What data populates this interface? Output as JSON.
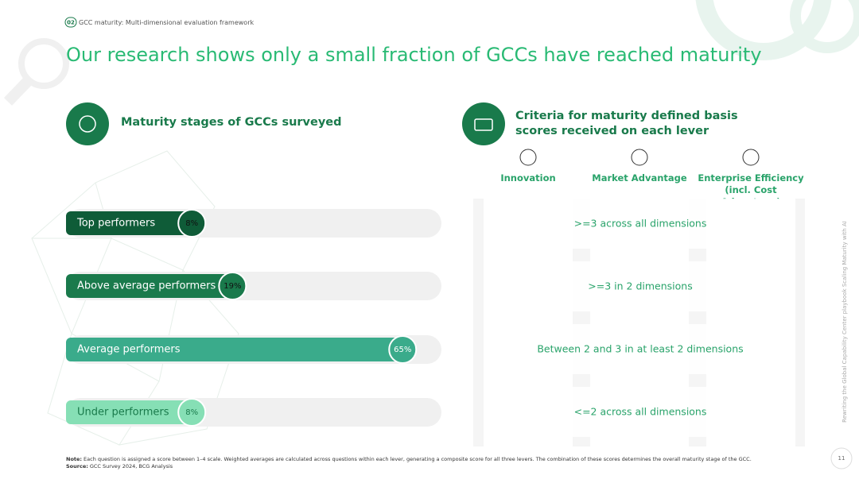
{
  "header": {
    "number": "02",
    "section": "GCC maturity: Multi-dimensional evaluation framework"
  },
  "title": "Our research shows only a small fraction of GCCs have reached maturity",
  "left": {
    "heading": "Maturity stages of GCCs surveyed"
  },
  "chart_data": {
    "type": "bar",
    "categories": [
      "Top performers",
      "Above average performers",
      "Average performers",
      "Under performers"
    ],
    "values": [
      8,
      19,
      65,
      8
    ],
    "value_labels": [
      "8%",
      "19%",
      "65%",
      "8%"
    ],
    "colors": [
      "#0f5c38",
      "#1a7a4c",
      "#3aab8b",
      "#86dfb5"
    ]
  },
  "right": {
    "heading": "Criteria for maturity defined basis scores received on each lever",
    "columns": [
      "Innovation",
      "Market Advantage",
      "Enterprise Efficiency (incl. Cost Advantage)"
    ],
    "rows": [
      ">=3 across all dimensions",
      ">=3 in 2 dimensions",
      "Between 2 and 3 in at least 2 dimensions",
      "<=2 across all dimensions"
    ]
  },
  "footer": {
    "note_label": "Note:",
    "note": "Each question is assigned a score between 1–4 scale. Weighted averages are calculated across questions within each lever, generating a composite score for all three levers. The combination of these scores determines the overall maturity stage of the GCC.",
    "source_label": "Source:",
    "source": "GCC Survey 2024, BCG Analysis"
  },
  "side_text": "Rewriting the Global Capability Center playbook Scaling Maturity with AI",
  "page_number": "11"
}
